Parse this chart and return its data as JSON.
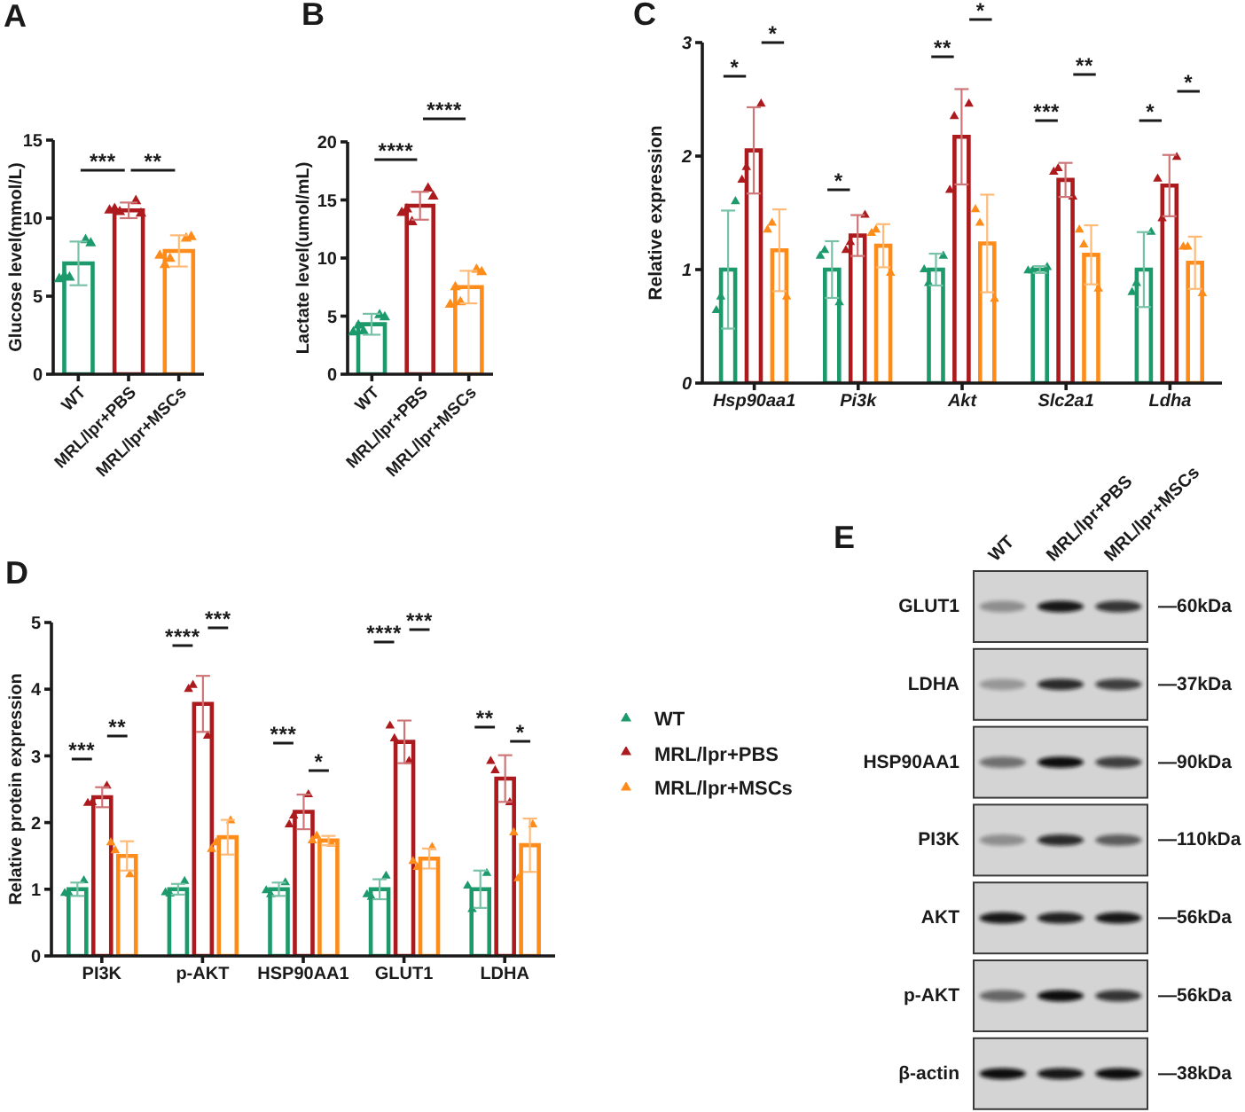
{
  "chart_data": [
    {
      "type": "bar",
      "title": "A",
      "ylabel": "Glucose level(mmol/L)",
      "categories": [
        "WT",
        "MRL/lpr+PBS",
        "MRL/lpr+MSCs"
      ],
      "ylim": [
        0,
        15
      ],
      "yticks": [
        0,
        5,
        10,
        15
      ],
      "marker": "triangle",
      "series": [
        {
          "type": "bar",
          "colors": [
            "#1d9a6c",
            "#ad1a1d",
            "#fe8c1b"
          ],
          "values": [
            7.1,
            10.5,
            7.9
          ],
          "errors": [
            1.4,
            0.5,
            1.0
          ]
        },
        {
          "type": "scatter",
          "color": "#1d9a6c",
          "x": [
            "WT",
            "WT",
            "WT",
            "WT",
            "WT"
          ],
          "values": [
            6.2,
            8.6,
            6.3,
            8.4,
            6.1
          ]
        },
        {
          "type": "scatter",
          "color": "#ad1a1d",
          "x": [
            "MRL/lpr+PBS",
            "MRL/lpr+PBS",
            "MRL/lpr+PBS",
            "MRL/lpr+PBS",
            "MRL/lpr+PBS"
          ],
          "values": [
            10.4,
            11.1,
            10.6,
            10.3,
            10.5
          ]
        },
        {
          "type": "scatter",
          "color": "#fe8c1b",
          "x": [
            "MRL/lpr+MSCs",
            "MRL/lpr+MSCs",
            "MRL/lpr+MSCs",
            "MRL/lpr+MSCs",
            "MRL/lpr+MSCs"
          ],
          "values": [
            7.4,
            8.7,
            7.0,
            8.8,
            7.6
          ]
        }
      ],
      "annotations": [
        "***",
        "**"
      ]
    },
    {
      "type": "bar",
      "title": "B",
      "ylabel": "Lactate level(umol/mL)",
      "categories": [
        "WT",
        "MRL/lpr+PBS",
        "MRL/lpr+MSCs"
      ],
      "ylim": [
        0,
        20
      ],
      "yticks": [
        0,
        5,
        10,
        15,
        20
      ],
      "marker": "triangle",
      "series": [
        {
          "type": "bar",
          "colors": [
            "#1d9a6c",
            "#ad1a1d",
            "#fe8c1b"
          ],
          "values": [
            4.3,
            14.5,
            7.5
          ],
          "errors": [
            0.9,
            1.2,
            1.4
          ]
        },
        {
          "type": "scatter",
          "color": "#1d9a6c",
          "x": [
            "WT",
            "WT",
            "WT",
            "WT",
            "WT"
          ],
          "values": [
            3.7,
            5.1,
            4.2,
            4.9,
            3.6
          ]
        },
        {
          "type": "scatter",
          "color": "#ad1a1d",
          "x": [
            "MRL/lpr+PBS",
            "MRL/lpr+PBS",
            "MRL/lpr+PBS",
            "MRL/lpr+PBS",
            "MRL/lpr+PBS"
          ],
          "values": [
            13.1,
            16.0,
            14.2,
            15.3,
            13.9
          ]
        },
        {
          "type": "scatter",
          "color": "#fe8c1b",
          "x": [
            "MRL/lpr+MSCs",
            "MRL/lpr+MSCs",
            "MRL/lpr+MSCs",
            "MRL/lpr+MSCs",
            "MRL/lpr+MSCs"
          ],
          "values": [
            6.2,
            9.0,
            7.5,
            8.8,
            6.0
          ]
        }
      ],
      "annotations": [
        "****",
        "****"
      ]
    },
    {
      "type": "bar",
      "title": "C",
      "ylabel": "Relative expression",
      "categories": [
        "Hsp90aa1",
        "Pi3k",
        "Akt",
        "Slc2a1",
        "Ldha"
      ],
      "ylim": [
        0,
        3
      ],
      "yticks": [
        0,
        1,
        2,
        3
      ],
      "marker": "triangle",
      "series": [
        {
          "type": "bar",
          "color": "#1d9a6c",
          "values": [
            1.0,
            1.0,
            1.0,
            1.0,
            1.0
          ],
          "errors": [
            0.52,
            0.25,
            0.14,
            0.03,
            0.33
          ]
        },
        {
          "type": "bar",
          "color": "#ad1a1d",
          "values": [
            2.05,
            1.3,
            2.17,
            1.79,
            1.74
          ],
          "errors": [
            0.38,
            0.18,
            0.42,
            0.15,
            0.27
          ]
        },
        {
          "type": "bar",
          "color": "#fe8c1b",
          "values": [
            1.17,
            1.21,
            1.23,
            1.13,
            1.06
          ],
          "errors": [
            0.36,
            0.19,
            0.43,
            0.26,
            0.23
          ]
        },
        {
          "type": "scatter",
          "color": "#1d9a6c",
          "x": [
            "Hsp90aa1",
            "Hsp90aa1",
            "Hsp90aa1",
            "Pi3k",
            "Pi3k",
            "Pi3k",
            "Akt",
            "Akt",
            "Akt",
            "Slc2a1",
            "Slc2a1",
            "Slc2a1",
            "Ldha",
            "Ldha",
            "Ldha"
          ],
          "values": [
            0.76,
            1.6,
            0.64,
            1.17,
            0.71,
            1.12,
            0.88,
            1.12,
            1.0,
            0.99,
            1.02,
            0.99,
            0.88,
            1.33,
            0.8
          ]
        },
        {
          "type": "scatter",
          "color": "#ad1a1d",
          "x": [
            "Hsp90aa1",
            "Hsp90aa1",
            "Hsp90aa1",
            "Pi3k",
            "Pi3k",
            "Pi3k",
            "Akt",
            "Akt",
            "Akt",
            "Slc2a1",
            "Slc2a1",
            "Slc2a1",
            "Ldha",
            "Ldha",
            "Ldha"
          ],
          "values": [
            1.9,
            2.46,
            1.79,
            1.24,
            1.48,
            1.17,
            2.35,
            2.46,
            1.7,
            1.89,
            1.64,
            1.86,
            1.45,
            1.99,
            1.8
          ]
        },
        {
          "type": "scatter",
          "color": "#fe8c1b",
          "x": [
            "Hsp90aa1",
            "Hsp90aa1",
            "Hsp90aa1",
            "Pi3k",
            "Pi3k",
            "Pi3k",
            "Akt",
            "Akt",
            "Akt",
            "Slc2a1",
            "Slc2a1",
            "Slc2a1",
            "Ldha",
            "Ldha",
            "Ldha"
          ],
          "values": [
            1.41,
            0.76,
            1.35,
            1.35,
            0.97,
            1.32,
            1.41,
            0.74,
            1.53,
            1.22,
            0.83,
            1.35,
            1.2,
            0.79,
            1.2
          ]
        }
      ],
      "annotations": [
        "*",
        "*",
        "*",
        "**",
        "*",
        "***",
        "**",
        "*",
        "*"
      ]
    },
    {
      "type": "bar",
      "title": "D",
      "ylabel": "Relative protein expression",
      "categories": [
        "PI3K",
        "p-AKT",
        "HSP90AA1",
        "GLUT1",
        "LDHA"
      ],
      "ylim": [
        0,
        5
      ],
      "yticks": [
        0,
        1,
        2,
        3,
        4,
        5
      ],
      "marker": "triangle",
      "legend": "right",
      "series": [
        {
          "type": "bar",
          "name": "WT",
          "color": "#1d9a6c",
          "values": [
            1.0,
            1.0,
            1.0,
            1.0,
            1.0
          ],
          "errors": [
            0.1,
            0.08,
            0.1,
            0.15,
            0.28
          ]
        },
        {
          "type": "bar",
          "name": "MRL/lpr+PBS",
          "color": "#ad1a1d",
          "values": [
            2.38,
            3.78,
            2.16,
            3.21,
            2.66
          ],
          "errors": [
            0.15,
            0.42,
            0.26,
            0.32,
            0.35
          ]
        },
        {
          "type": "bar",
          "name": "MRL/lpr+MSCs",
          "color": "#fe8c1b",
          "values": [
            1.5,
            1.78,
            1.73,
            1.46,
            1.66
          ],
          "errors": [
            0.22,
            0.26,
            0.07,
            0.15,
            0.4
          ]
        },
        {
          "type": "scatter",
          "color": "#1d9a6c",
          "x": [
            "PI3K",
            "PI3K",
            "PI3K",
            "p-AKT",
            "p-AKT",
            "p-AKT",
            "HSP90AA1",
            "HSP90AA1",
            "HSP90AA1",
            "GLUT1",
            "GLUT1",
            "GLUT1",
            "LDHA",
            "LDHA",
            "LDHA"
          ],
          "values": [
            0.93,
            1.13,
            0.94,
            0.93,
            1.12,
            0.95,
            0.92,
            1.1,
            0.98,
            0.88,
            1.2,
            0.92,
            0.7,
            1.24,
            1.05
          ]
        },
        {
          "type": "scatter",
          "color": "#ad1a1d",
          "x": [
            "PI3K",
            "PI3K",
            "PI3K",
            "p-AKT",
            "p-AKT",
            "p-AKT",
            "HSP90AA1",
            "HSP90AA1",
            "HSP90AA1",
            "GLUT1",
            "GLUT1",
            "GLUT1",
            "LDHA",
            "LDHA",
            "LDHA"
          ],
          "values": [
            2.3,
            2.55,
            2.29,
            4.06,
            3.3,
            4.0,
            2.1,
            2.42,
            1.97,
            3.26,
            2.92,
            3.45,
            2.78,
            2.3,
            2.92
          ]
        },
        {
          "type": "scatter",
          "color": "#fe8c1b",
          "x": [
            "PI3K",
            "PI3K",
            "PI3K",
            "p-AKT",
            "p-AKT",
            "p-AKT",
            "HSP90AA1",
            "HSP90AA1",
            "HSP90AA1",
            "GLUT1",
            "GLUT1",
            "GLUT1",
            "LDHA",
            "LDHA",
            "LDHA"
          ],
          "values": [
            1.58,
            1.22,
            1.7,
            1.7,
            2.03,
            1.6,
            1.8,
            1.68,
            1.73,
            1.33,
            1.63,
            1.42,
            1.16,
            1.97,
            1.85
          ]
        }
      ],
      "annotations": [
        "***",
        "**",
        "****",
        "***",
        "***",
        "*",
        "****",
        "***",
        "**",
        "*"
      ]
    },
    {
      "type": "other",
      "title": "E",
      "categories": [
        "WT",
        "MRL/lpr+PBS",
        "MRL/lpr+MSCs"
      ],
      "y_categories": [
        "GLUT1",
        "LDHA",
        "HSP90AA1",
        "PI3K",
        "AKT",
        "p-AKT",
        "β-actin"
      ],
      "y2_categories": [
        "—60kDa",
        "—37kDa",
        "—90kDa",
        "—110kDa",
        "—56kDa",
        "—56kDa",
        "—38kDa"
      ]
    }
  ]
}
